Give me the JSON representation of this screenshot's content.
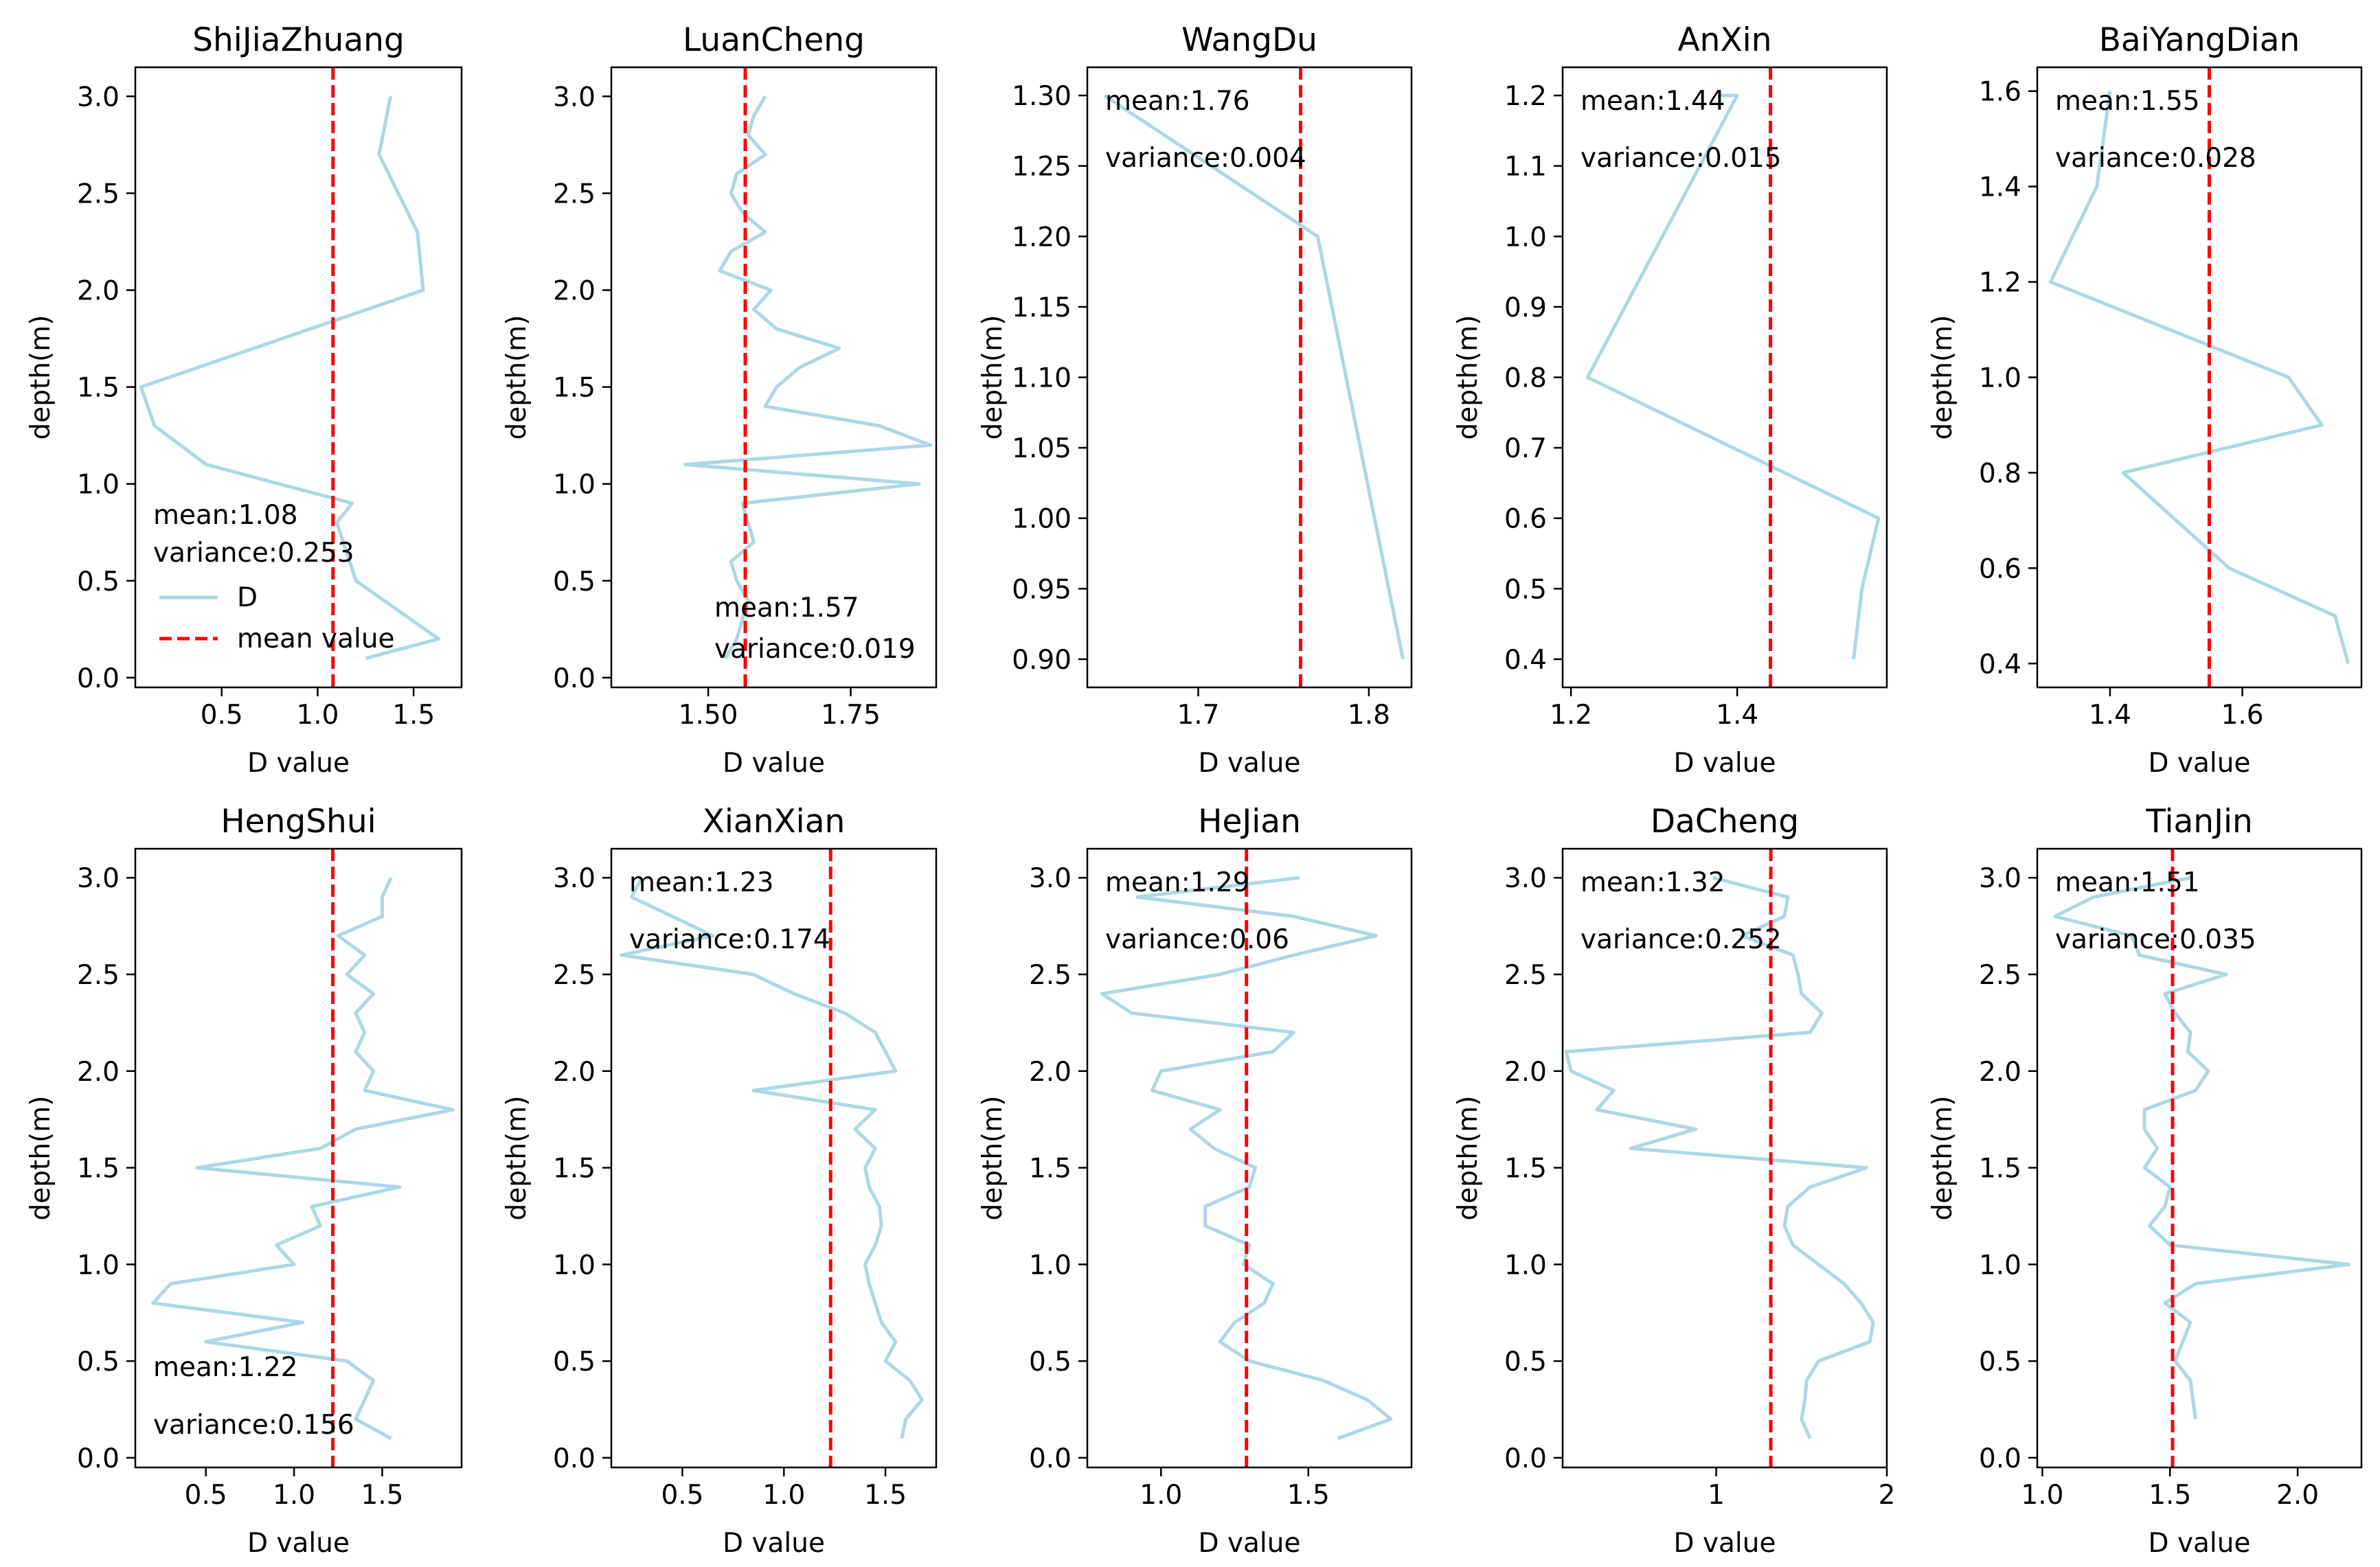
{
  "colors": {
    "line": "#add8e6",
    "mean": "#ff0000",
    "axis": "#000000"
  },
  "common": {
    "xlabel": "D value",
    "ylabel": "depth(m)"
  },
  "legend": {
    "d_label": "D",
    "mean_label": "mean value"
  },
  "chart_data": [
    {
      "type": "line",
      "title": "ShiJiaZhuang",
      "mean_text": "mean:1.08",
      "variance_text": "variance:0.253",
      "mean": 1.08,
      "xlim": [
        0.05,
        1.75
      ],
      "ylim": [
        3.15,
        -0.05
      ],
      "xticks": [
        0.5,
        1.0,
        1.5
      ],
      "xtick_labels": [
        "0.5",
        "1.0",
        "1.5"
      ],
      "yticks": [
        0.0,
        0.5,
        1.0,
        1.5,
        2.0,
        2.5,
        3.0
      ],
      "ytick_labels": [
        "0.0",
        "0.5",
        "1.0",
        "1.5",
        "2.0",
        "2.5",
        "3.0"
      ],
      "depth": [
        0.1,
        0.2,
        0.5,
        0.8,
        0.9,
        1.1,
        1.3,
        1.5,
        2.0,
        2.3,
        2.7,
        3.0
      ],
      "D": [
        1.25,
        1.63,
        1.2,
        1.1,
        1.18,
        0.42,
        0.15,
        0.08,
        1.55,
        1.52,
        1.32,
        1.38
      ],
      "text_pos": "bottom-left",
      "legend": true
    },
    {
      "type": "line",
      "title": "LuanCheng",
      "mean_text": "mean:1.57",
      "variance_text": "variance:0.019",
      "mean": 1.565,
      "xlim": [
        1.33,
        1.9
      ],
      "ylim": [
        3.15,
        -0.05
      ],
      "xticks": [
        1.5,
        1.75
      ],
      "xtick_labels": [
        "1.50",
        "1.75"
      ],
      "yticks": [
        0.0,
        0.5,
        1.0,
        1.5,
        2.0,
        2.5,
        3.0
      ],
      "ytick_labels": [
        "0.0",
        "0.5",
        "1.0",
        "1.5",
        "2.0",
        "2.5",
        "3.0"
      ],
      "depth": [
        0.1,
        0.2,
        0.3,
        0.4,
        0.5,
        0.6,
        0.7,
        0.8,
        0.9,
        1.0,
        1.1,
        1.2,
        1.3,
        1.4,
        1.5,
        1.6,
        1.7,
        1.8,
        1.9,
        2.0,
        2.1,
        2.2,
        2.3,
        2.4,
        2.5,
        2.6,
        2.7,
        2.8,
        2.9,
        3.0
      ],
      "D": [
        1.53,
        1.55,
        1.56,
        1.57,
        1.55,
        1.54,
        1.58,
        1.57,
        1.56,
        1.87,
        1.46,
        1.89,
        1.8,
        1.6,
        1.62,
        1.66,
        1.73,
        1.62,
        1.58,
        1.61,
        1.52,
        1.54,
        1.6,
        1.56,
        1.54,
        1.55,
        1.6,
        1.57,
        1.58,
        1.6
      ],
      "text_pos": "bottom-left",
      "legend": false
    },
    {
      "type": "line",
      "title": "WangDu",
      "mean_text": "mean:1.76",
      "variance_text": "variance:0.004",
      "mean": 1.76,
      "xlim": [
        1.635,
        1.825
      ],
      "ylim": [
        1.32,
        0.88
      ],
      "xticks": [
        1.7,
        1.8
      ],
      "xtick_labels": [
        "1.7",
        "1.8"
      ],
      "yticks": [
        0.9,
        0.95,
        1.0,
        1.05,
        1.1,
        1.15,
        1.2,
        1.25,
        1.3
      ],
      "ytick_labels": [
        "0.90",
        "0.95",
        "1.00",
        "1.05",
        "1.10",
        "1.15",
        "1.20",
        "1.25",
        "1.30"
      ],
      "depth": [
        0.9,
        1.2,
        1.3
      ],
      "D": [
        1.82,
        1.77,
        1.645
      ],
      "text_pos": "top-left",
      "legend": false
    },
    {
      "type": "line",
      "title": "AnXin",
      "mean_text": "mean:1.44",
      "variance_text": "variance:0.015",
      "mean": 1.44,
      "xlim": [
        1.19,
        1.58
      ],
      "ylim": [
        1.24,
        0.36
      ],
      "xticks": [
        1.2,
        1.4
      ],
      "xtick_labels": [
        "1.2",
        "1.4"
      ],
      "yticks": [
        0.4,
        0.5,
        0.6,
        0.7,
        0.8,
        0.9,
        1.0,
        1.1,
        1.2
      ],
      "ytick_labels": [
        "0.4",
        "0.5",
        "0.6",
        "0.7",
        "0.8",
        "0.9",
        "1.0",
        "1.1",
        "1.2"
      ],
      "depth": [
        0.4,
        0.5,
        0.6,
        0.8,
        1.2,
        1.2
      ],
      "D": [
        1.54,
        1.55,
        1.57,
        1.22,
        1.4,
        1.38
      ],
      "text_pos": "top-left",
      "legend": false
    },
    {
      "type": "line",
      "title": "BaiYangDian",
      "mean_text": "mean:1.55",
      "variance_text": "variance:0.028",
      "mean": 1.55,
      "xlim": [
        1.29,
        1.78
      ],
      "ylim": [
        1.65,
        0.35
      ],
      "xticks": [
        1.4,
        1.6
      ],
      "xtick_labels": [
        "1.4",
        "1.6"
      ],
      "yticks": [
        0.4,
        0.6,
        0.8,
        1.0,
        1.2,
        1.4,
        1.6
      ],
      "ytick_labels": [
        "0.4",
        "0.6",
        "0.8",
        "1.0",
        "1.2",
        "1.4",
        "1.6"
      ],
      "depth": [
        0.4,
        0.5,
        0.6,
        0.8,
        0.9,
        1.0,
        1.2,
        1.4,
        1.6
      ],
      "D": [
        1.76,
        1.74,
        1.58,
        1.42,
        1.72,
        1.67,
        1.31,
        1.38,
        1.4
      ],
      "text_pos": "top-left",
      "legend": false
    },
    {
      "type": "line",
      "title": "HengShui",
      "mean_text": "mean:1.22",
      "variance_text": "variance:0.156",
      "mean": 1.22,
      "xlim": [
        0.1,
        1.95
      ],
      "ylim": [
        3.15,
        -0.05
      ],
      "xticks": [
        0.5,
        1.0,
        1.5
      ],
      "xtick_labels": [
        "0.5",
        "1.0",
        "1.5"
      ],
      "yticks": [
        0.0,
        0.5,
        1.0,
        1.5,
        2.0,
        2.5,
        3.0
      ],
      "ytick_labels": [
        "0.0",
        "0.5",
        "1.0",
        "1.5",
        "2.0",
        "2.5",
        "3.0"
      ],
      "depth": [
        0.1,
        0.2,
        0.3,
        0.4,
        0.5,
        0.6,
        0.7,
        0.8,
        0.9,
        1.0,
        1.1,
        1.2,
        1.3,
        1.4,
        1.5,
        1.6,
        1.7,
        1.8,
        1.9,
        2.0,
        2.1,
        2.2,
        2.3,
        2.4,
        2.5,
        2.6,
        2.7,
        2.8,
        2.9,
        3.0
      ],
      "D": [
        1.55,
        1.35,
        1.4,
        1.45,
        1.3,
        0.5,
        1.05,
        0.2,
        0.3,
        1.0,
        0.9,
        1.15,
        1.1,
        1.6,
        0.45,
        1.15,
        1.35,
        1.9,
        1.4,
        1.45,
        1.35,
        1.4,
        1.35,
        1.45,
        1.3,
        1.4,
        1.25,
        1.5,
        1.5,
        1.55
      ],
      "text_pos": "bottom-left",
      "legend": false
    },
    {
      "type": "line",
      "title": "XianXian",
      "mean_text": "mean:1.23",
      "variance_text": "variance:0.174",
      "mean": 1.23,
      "xlim": [
        0.15,
        1.75
      ],
      "ylim": [
        3.15,
        -0.05
      ],
      "xticks": [
        0.5,
        1.0,
        1.5
      ],
      "xtick_labels": [
        "0.5",
        "1.0",
        "1.5"
      ],
      "yticks": [
        0.0,
        0.5,
        1.0,
        1.5,
        2.0,
        2.5,
        3.0
      ],
      "ytick_labels": [
        "0.0",
        "0.5",
        "1.0",
        "1.5",
        "2.0",
        "2.5",
        "3.0"
      ],
      "depth": [
        0.1,
        0.2,
        0.3,
        0.4,
        0.5,
        0.6,
        0.7,
        0.8,
        0.9,
        1.0,
        1.1,
        1.2,
        1.3,
        1.4,
        1.5,
        1.6,
        1.7,
        1.8,
        1.9,
        2.0,
        2.1,
        2.2,
        2.3,
        2.4,
        2.5,
        2.6,
        2.7,
        2.8,
        2.9,
        3.0
      ],
      "D": [
        1.58,
        1.6,
        1.68,
        1.62,
        1.5,
        1.55,
        1.48,
        1.45,
        1.42,
        1.4,
        1.45,
        1.48,
        1.47,
        1.42,
        1.4,
        1.45,
        1.35,
        1.45,
        0.85,
        1.55,
        1.5,
        1.45,
        1.3,
        1.05,
        0.85,
        0.2,
        0.65,
        0.45,
        0.25,
        0.3
      ],
      "text_pos": "top-left",
      "legend": false
    },
    {
      "type": "line",
      "title": "HeJian",
      "mean_text": "mean:1.29",
      "variance_text": "variance:0.06",
      "mean": 1.29,
      "xlim": [
        0.75,
        1.85
      ],
      "ylim": [
        3.15,
        -0.05
      ],
      "xticks": [
        1.0,
        1.5
      ],
      "xtick_labels": [
        "1.0",
        "1.5"
      ],
      "yticks": [
        0.0,
        0.5,
        1.0,
        1.5,
        2.0,
        2.5,
        3.0
      ],
      "ytick_labels": [
        "0.0",
        "0.5",
        "1.0",
        "1.5",
        "2.0",
        "2.5",
        "3.0"
      ],
      "depth": [
        0.1,
        0.2,
        0.3,
        0.4,
        0.5,
        0.6,
        0.7,
        0.8,
        0.9,
        1.0,
        1.1,
        1.2,
        1.3,
        1.4,
        1.5,
        1.6,
        1.7,
        1.8,
        1.9,
        2.0,
        2.1,
        2.2,
        2.3,
        2.4,
        2.5,
        2.6,
        2.7,
        2.8,
        2.9,
        3.0
      ],
      "D": [
        1.6,
        1.78,
        1.7,
        1.55,
        1.3,
        1.2,
        1.25,
        1.35,
        1.38,
        1.28,
        1.3,
        1.15,
        1.15,
        1.3,
        1.32,
        1.18,
        1.1,
        1.2,
        0.97,
        1.0,
        1.38,
        1.45,
        0.9,
        0.8,
        1.2,
        1.45,
        1.73,
        1.45,
        0.92,
        1.47
      ],
      "text_pos": "top-left",
      "legend": false
    },
    {
      "type": "line",
      "title": "DaCheng",
      "mean_text": "mean:1.32",
      "variance_text": "variance:0.252",
      "mean": 1.32,
      "xlim": [
        0.1,
        2.0
      ],
      "ylim": [
        3.15,
        -0.05
      ],
      "xticks": [
        1,
        2
      ],
      "xtick_labels": [
        "1",
        "2"
      ],
      "yticks": [
        0.0,
        0.5,
        1.0,
        1.5,
        2.0,
        2.5,
        3.0
      ],
      "ytick_labels": [
        "0.0",
        "0.5",
        "1.0",
        "1.5",
        "2.0",
        "2.5",
        "3.0"
      ],
      "depth": [
        0.1,
        0.2,
        0.3,
        0.4,
        0.5,
        0.6,
        0.7,
        0.8,
        0.9,
        1.0,
        1.1,
        1.2,
        1.3,
        1.4,
        1.5,
        1.6,
        1.7,
        1.8,
        1.9,
        2.0,
        2.1,
        2.2,
        2.3,
        2.4,
        2.5,
        2.6,
        2.7,
        2.8,
        2.9,
        3.0
      ],
      "D": [
        1.55,
        1.5,
        1.52,
        1.53,
        1.6,
        1.9,
        1.92,
        1.85,
        1.75,
        1.6,
        1.45,
        1.4,
        1.42,
        1.55,
        1.88,
        0.5,
        0.88,
        0.3,
        0.4,
        0.15,
        0.12,
        1.55,
        1.62,
        1.5,
        1.48,
        1.45,
        1.15,
        1.4,
        1.42,
        0.98
      ],
      "text_pos": "top-left",
      "legend": false
    },
    {
      "type": "line",
      "title": "TianJin",
      "mean_text": "mean:1.51",
      "variance_text": "variance:0.035",
      "mean": 1.51,
      "xlim": [
        0.98,
        2.25
      ],
      "ylim": [
        3.15,
        -0.05
      ],
      "xticks": [
        1.0,
        1.5,
        2.0
      ],
      "xtick_labels": [
        "1.0",
        "1.5",
        "2.0"
      ],
      "yticks": [
        0.0,
        0.5,
        1.0,
        1.5,
        2.0,
        2.5,
        3.0
      ],
      "ytick_labels": [
        "0.0",
        "0.5",
        "1.0",
        "1.5",
        "2.0",
        "2.5",
        "3.0"
      ],
      "depth": [
        0.2,
        0.4,
        0.5,
        0.6,
        0.7,
        0.8,
        0.9,
        1.0,
        1.1,
        1.2,
        1.3,
        1.4,
        1.5,
        1.6,
        1.7,
        1.8,
        1.9,
        2.0,
        2.1,
        2.2,
        2.3,
        2.4,
        2.5,
        2.6,
        2.7,
        2.8,
        2.9,
        3.0
      ],
      "D": [
        1.6,
        1.58,
        1.52,
        1.55,
        1.58,
        1.48,
        1.6,
        2.2,
        1.5,
        1.42,
        1.48,
        1.5,
        1.4,
        1.45,
        1.4,
        1.4,
        1.6,
        1.65,
        1.57,
        1.58,
        1.52,
        1.48,
        1.72,
        1.38,
        1.35,
        1.05,
        1.2,
        1.58
      ],
      "text_pos": "top-left",
      "legend": false
    }
  ]
}
